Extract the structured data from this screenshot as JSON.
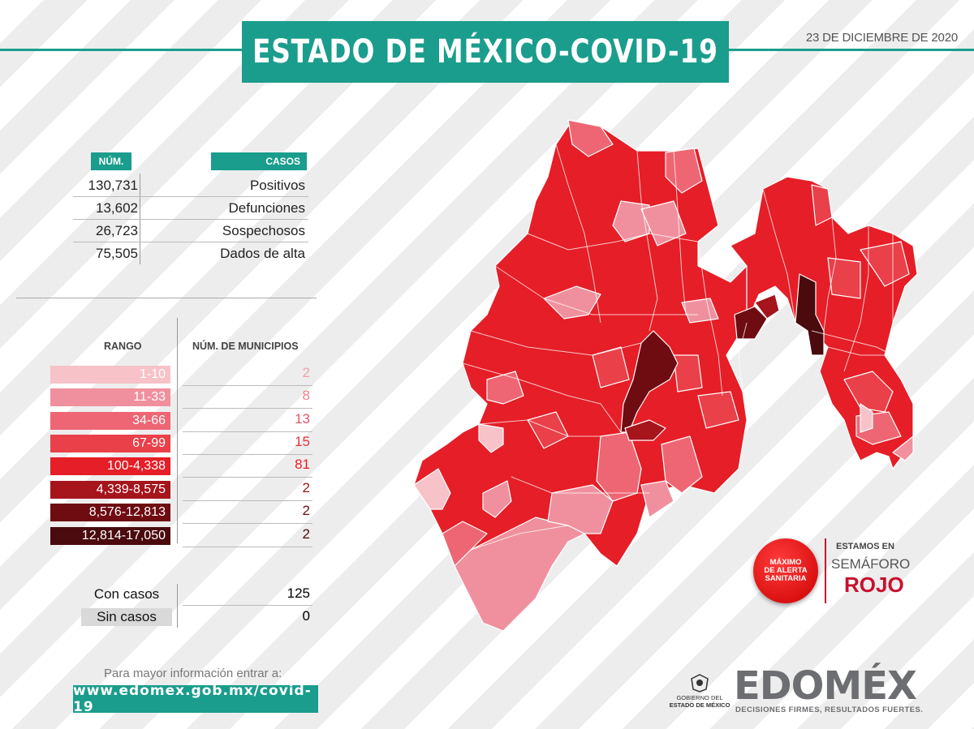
{
  "title": "ESTADO DE MÉXICO-COVID-19",
  "date": "23 DE DICIEMBRE DE 2020",
  "cases_table": {
    "num_header": "NÚM.",
    "cases_header": "CASOS",
    "rows": [
      {
        "num": "130,731",
        "label": "Positivos"
      },
      {
        "num": "13,602",
        "label": "Defunciones"
      },
      {
        "num": "26,723",
        "label": "Sospechosos"
      },
      {
        "num": "75,505",
        "label": "Dados de alta"
      }
    ]
  },
  "range_table": {
    "range_header": "RANGO",
    "count_header": "NÚM. DE MUNICIPIOS",
    "rows": [
      {
        "range": "1-10",
        "count": "2",
        "color": "#f7c2c8",
        "text_color": "#ffffff",
        "count_color": "#f2a0aa"
      },
      {
        "range": "11-33",
        "count": "8",
        "color": "#f0909e",
        "text_color": "#ffffff",
        "count_color": "#ee7f8f"
      },
      {
        "range": "34-66",
        "count": "13",
        "color": "#ee6674",
        "text_color": "#ffffff",
        "count_color": "#e85565"
      },
      {
        "range": "67-99",
        "count": "15",
        "color": "#e94049",
        "text_color": "#ffffff",
        "count_color": "#e3323e"
      },
      {
        "range": "100-4,338",
        "count": "81",
        "color": "#e51e27",
        "text_color": "#ffffff",
        "count_color": "#e51e27"
      },
      {
        "range": "4,339-8,575",
        "count": "2",
        "color": "#a6141c",
        "text_color": "#ffffff",
        "count_color": "#9c131b"
      },
      {
        "range": "8,576-12,813",
        "count": "2",
        "color": "#6e0c12",
        "text_color": "#ffffff",
        "count_color": "#6e0c12"
      },
      {
        "range": "12,814-17,050",
        "count": "2",
        "color": "#4a0a0e",
        "text_color": "#ffffff",
        "count_color": "#4a0a0e"
      }
    ]
  },
  "totals": [
    {
      "label": "Con casos",
      "value": "125"
    },
    {
      "label": "Sin casos",
      "value": "0"
    }
  ],
  "footer": {
    "more_info": "Para mayor información entrar a:",
    "url": "www.edomex.gob.mx/covid-19"
  },
  "alert": {
    "badge_line1": "MÁXIMO",
    "badge_line2": "DE ALERTA",
    "badge_line3": "SANITARIA",
    "line1": "ESTAMOS EN",
    "line2": "SEMÁFORO",
    "line3": "ROJO"
  },
  "branding": {
    "gov_line1": "GOBIERNO DEL",
    "gov_line2": "ESTADO DE MÉXICO",
    "logo": "EDOMÉX",
    "slogan": "DECISIONES FIRMES, RESULTADOS FUERTES."
  },
  "map": {
    "fill_colors": [
      "#e51e27",
      "#e94049",
      "#ee6674",
      "#f0909e",
      "#f7c2c8",
      "#a6141c",
      "#6e0c12",
      "#4a0a0e"
    ]
  }
}
